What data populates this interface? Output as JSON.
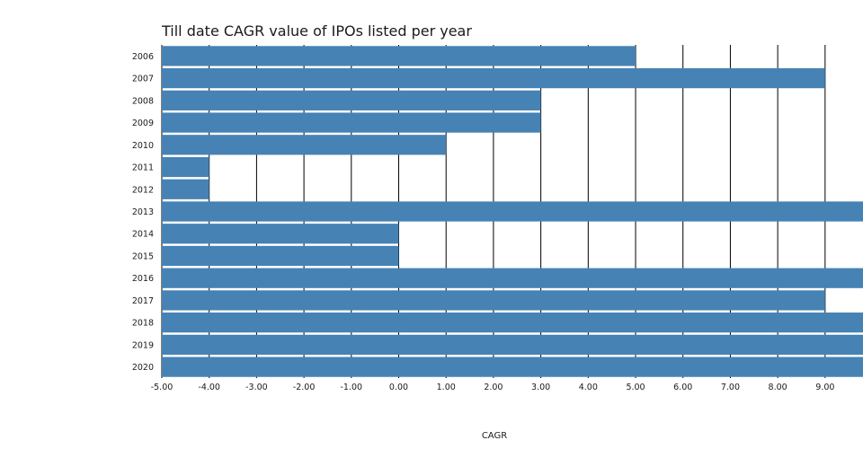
{
  "chart_data": {
    "type": "bar",
    "orientation": "horizontal",
    "title": "Till date CAGR value of IPOs listed per year",
    "xlabel": "CAGR",
    "ylabel": "",
    "categories": [
      "2006",
      "2007",
      "2008",
      "2009",
      "2010",
      "2011",
      "2012",
      "2013",
      "2014",
      "2015",
      "2016",
      "2017",
      "2018",
      "2019",
      "2020"
    ],
    "values": [
      5.0,
      9.0,
      3.0,
      3.0,
      1.0,
      -4.0,
      -4.0,
      9.8,
      0.0,
      0.0,
      9.8,
      9.0,
      9.8,
      9.8,
      9.8
    ],
    "xlim": [
      -5.0,
      9.8
    ],
    "xticks": [
      "-5.00",
      "-4.00",
      "-3.00",
      "-2.00",
      "-1.00",
      "0.00",
      "1.00",
      "2.00",
      "3.00",
      "4.00",
      "5.00",
      "6.00",
      "7.00",
      "8.00",
      "9.00"
    ],
    "grid": true,
    "bar_color": "#4682b4",
    "grid_color": "#000000"
  }
}
